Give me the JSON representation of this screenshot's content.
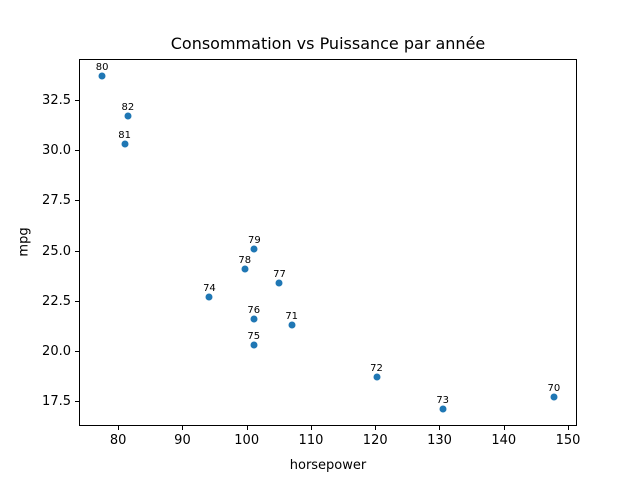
{
  "chart_data": {
    "type": "scatter",
    "title": "Consommation vs Puissance par année",
    "xlabel": "horsepower",
    "ylabel": "mpg",
    "xlim": [
      73.9,
      151.4
    ],
    "ylim": [
      16.25,
      34.55
    ],
    "grid": false,
    "legend": "none",
    "marker_color": "#1f77b4",
    "xticks": [
      {
        "v": 80,
        "label": "80"
      },
      {
        "v": 90,
        "label": "90"
      },
      {
        "v": 100,
        "label": "100"
      },
      {
        "v": 110,
        "label": "110"
      },
      {
        "v": 120,
        "label": "120"
      },
      {
        "v": 130,
        "label": "130"
      },
      {
        "v": 140,
        "label": "140"
      },
      {
        "v": 150,
        "label": "150"
      }
    ],
    "yticks": [
      {
        "v": 17.5,
        "label": "17.5"
      },
      {
        "v": 20.0,
        "label": "20.0"
      },
      {
        "v": 22.5,
        "label": "22.5"
      },
      {
        "v": 25.0,
        "label": "25.0"
      },
      {
        "v": 27.5,
        "label": "27.5"
      },
      {
        "v": 30.0,
        "label": "30.0"
      },
      {
        "v": 32.5,
        "label": "32.5"
      }
    ],
    "points": [
      {
        "label": "70",
        "x": 147.8,
        "y": 17.7
      },
      {
        "label": "71",
        "x": 107.0,
        "y": 21.3
      },
      {
        "label": "72",
        "x": 120.2,
        "y": 18.7
      },
      {
        "label": "73",
        "x": 130.5,
        "y": 17.1
      },
      {
        "label": "74",
        "x": 94.2,
        "y": 22.7
      },
      {
        "label": "75",
        "x": 101.1,
        "y": 20.3
      },
      {
        "label": "76",
        "x": 101.1,
        "y": 21.6
      },
      {
        "label": "77",
        "x": 105.1,
        "y": 23.4
      },
      {
        "label": "78",
        "x": 99.7,
        "y": 24.1
      },
      {
        "label": "79",
        "x": 101.2,
        "y": 25.1
      },
      {
        "label": "80",
        "x": 77.5,
        "y": 33.7
      },
      {
        "label": "81",
        "x": 81.0,
        "y": 30.3
      },
      {
        "label": "82",
        "x": 81.5,
        "y": 31.7
      }
    ]
  }
}
